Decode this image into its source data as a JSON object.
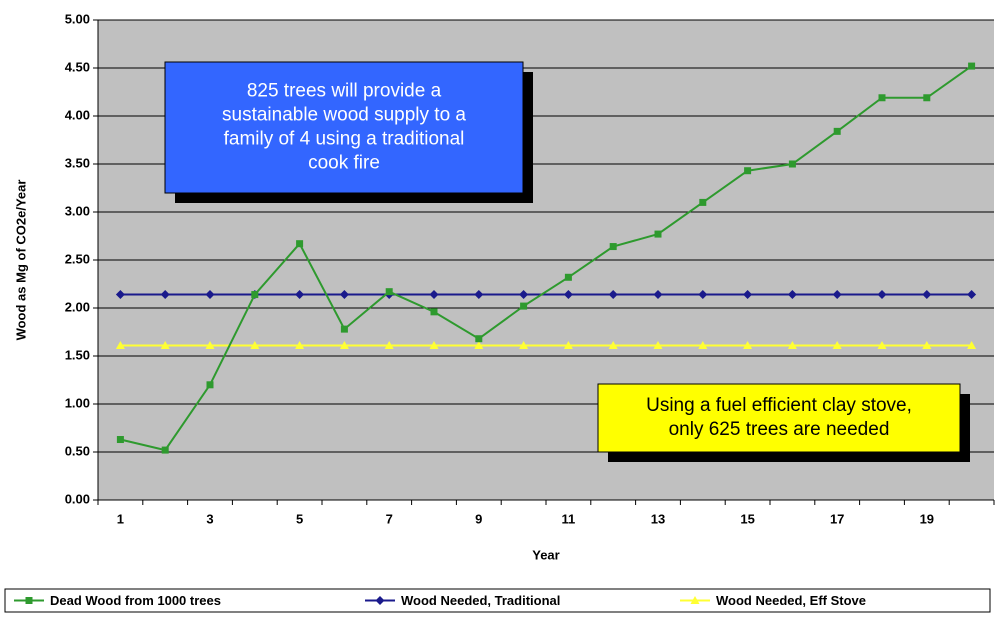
{
  "chart_data": {
    "type": "line",
    "y_label": "Wood as Mg of CO2e/Year",
    "x_label": "Year",
    "categories": [
      1,
      null,
      3,
      null,
      5,
      null,
      7,
      null,
      9,
      null,
      11,
      null,
      13,
      null,
      15,
      null,
      17,
      null,
      19,
      null
    ],
    "series": [
      {
        "name": "Dead Wood from 1000 trees",
        "color": "#2e9a2e",
        "marker": "square",
        "values": [
          0.63,
          0.52,
          1.2,
          2.14,
          2.67,
          1.78,
          2.17,
          1.96,
          1.68,
          2.02,
          2.32,
          2.64,
          2.77,
          3.1,
          3.43,
          3.5,
          3.84,
          4.19,
          4.19,
          4.52
        ]
      },
      {
        "name": "Wood Needed, Traditional",
        "color": "#1a1a8c",
        "marker": "diamond",
        "values": [
          2.14,
          2.14,
          2.14,
          2.14,
          2.14,
          2.14,
          2.14,
          2.14,
          2.14,
          2.14,
          2.14,
          2.14,
          2.14,
          2.14,
          2.14,
          2.14,
          2.14,
          2.14,
          2.14,
          2.14
        ]
      },
      {
        "name": "Wood Needed, Eff Stove",
        "color": "#ffff33",
        "marker": "triangle",
        "values": [
          1.61,
          1.61,
          1.61,
          1.61,
          1.61,
          1.61,
          1.61,
          1.61,
          1.61,
          1.61,
          1.61,
          1.61,
          1.61,
          1.61,
          1.61,
          1.61,
          1.61,
          1.61,
          1.61,
          1.61
        ]
      }
    ],
    "ylim": [
      0,
      5
    ],
    "yticks": [
      {
        "value": 0,
        "label": "0.00"
      },
      {
        "value": 0.5,
        "label": "0.50"
      },
      {
        "value": 1,
        "label": "1.00"
      },
      {
        "value": 1.5,
        "label": "1.50"
      },
      {
        "value": 2,
        "label": "2.00"
      },
      {
        "value": 2.5,
        "label": "2.50"
      },
      {
        "value": 3,
        "label": "3.00"
      },
      {
        "value": 3.5,
        "label": "3.50"
      },
      {
        "value": 4,
        "label": "4.00"
      },
      {
        "value": 4.5,
        "label": "4.50"
      },
      {
        "value": 5,
        "label": "5.00"
      }
    ],
    "grid": true,
    "legend": "bottom",
    "annotations": [
      {
        "lines": [
          "825 trees will provide a",
          "sustainable wood supply to a",
          "family of 4 using a traditional",
          "cook fire"
        ],
        "color": "#3366ff"
      },
      {
        "lines": [
          "Using a fuel efficient clay stove,",
          "only 625 trees are needed"
        ],
        "color": "#ffff00"
      }
    ]
  }
}
